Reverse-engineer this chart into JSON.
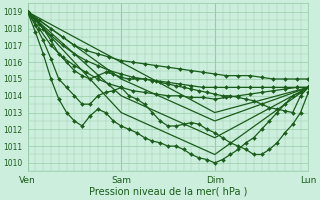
{
  "title": "",
  "xlabel": "Pression niveau de la mer( hPa )",
  "ylabel": "",
  "xlim": [
    0,
    72
  ],
  "ylim": [
    1009.5,
    1019.5
  ],
  "yticks": [
    1010,
    1011,
    1012,
    1013,
    1014,
    1015,
    1016,
    1017,
    1018,
    1019
  ],
  "xtick_positions": [
    0,
    24,
    48,
    72
  ],
  "xtick_labels": [
    "Ven",
    "Sam",
    "Dim",
    "Lun"
  ],
  "bg_color": "#cceedd",
  "grid_color": "#99ccaa",
  "line_color": "#1a5c1a",
  "marker": "D",
  "marker_size": 2.0,
  "line_width": 0.9,
  "series": [
    {
      "x": [
        0,
        3,
        6,
        9,
        12,
        15,
        18,
        21,
        24,
        27,
        30,
        33,
        36,
        39,
        42,
        45,
        48,
        51,
        54,
        57,
        60,
        63,
        66,
        69,
        72
      ],
      "y": [
        1019,
        1018.5,
        1018.0,
        1017.5,
        1017.0,
        1016.7,
        1016.5,
        1016.3,
        1016.1,
        1016.0,
        1015.9,
        1015.8,
        1015.7,
        1015.6,
        1015.5,
        1015.4,
        1015.3,
        1015.2,
        1015.2,
        1015.2,
        1015.1,
        1015.0,
        1015.0,
        1015.0,
        1015.0
      ]
    },
    {
      "x": [
        0,
        3,
        6,
        9,
        12,
        15,
        18,
        21,
        24,
        27,
        30,
        33,
        36,
        39,
        42,
        45,
        48,
        51,
        54,
        57,
        60,
        63,
        66,
        69,
        72
      ],
      "y": [
        1019,
        1018.3,
        1017.6,
        1017.0,
        1016.5,
        1016.1,
        1015.8,
        1015.5,
        1015.3,
        1015.1,
        1015.0,
        1014.9,
        1014.8,
        1014.7,
        1014.6,
        1014.5,
        1014.5,
        1014.5,
        1014.5,
        1014.5,
        1014.5,
        1014.5,
        1014.5,
        1014.5,
        1014.5
      ]
    },
    {
      "x": [
        0,
        3,
        6,
        9,
        12,
        15,
        18,
        21,
        24,
        27,
        30,
        33,
        36,
        39,
        42,
        45,
        48,
        51,
        54,
        57,
        60,
        63,
        66,
        69,
        72
      ],
      "y": [
        1019,
        1018.0,
        1017.0,
        1016.3,
        1015.8,
        1015.4,
        1015.0,
        1014.7,
        1014.5,
        1014.3,
        1014.2,
        1014.1,
        1014.0,
        1014.0,
        1013.9,
        1013.9,
        1013.8,
        1013.9,
        1014.0,
        1014.1,
        1014.2,
        1014.3,
        1014.4,
        1014.5,
        1014.5
      ]
    },
    {
      "x": [
        0,
        2,
        4,
        6,
        8,
        10,
        12,
        14,
        16,
        18,
        20,
        22,
        24,
        26,
        28,
        30,
        32,
        34,
        36,
        38,
        40,
        42,
        44,
        46,
        48,
        50,
        52,
        54,
        56,
        58,
        60,
        62,
        64,
        66,
        68,
        70,
        72
      ],
      "y": [
        1019,
        1018.5,
        1018.0,
        1017.3,
        1016.5,
        1016.0,
        1015.5,
        1015.2,
        1015.0,
        1015.2,
        1015.4,
        1015.3,
        1015.1,
        1015.0,
        1015.0,
        1015.0,
        1014.9,
        1014.8,
        1014.7,
        1014.6,
        1014.5,
        1014.4,
        1014.3,
        1014.2,
        1014.1,
        1014.0,
        1014.0,
        1013.9,
        1013.8,
        1013.7,
        1013.5,
        1013.3,
        1013.2,
        1013.1,
        1013.0,
        1014.0,
        1014.5
      ]
    },
    {
      "x": [
        0,
        24,
        48,
        72
      ],
      "y": [
        1019,
        1016.0,
        1013.0,
        1014.5
      ]
    },
    {
      "x": [
        0,
        24,
        48,
        72
      ],
      "y": [
        1019,
        1015.0,
        1012.5,
        1014.5
      ]
    },
    {
      "x": [
        0,
        24,
        48,
        72
      ],
      "y": [
        1019,
        1014.0,
        1011.5,
        1014.5
      ]
    },
    {
      "x": [
        0,
        24,
        48,
        72
      ],
      "y": [
        1019,
        1013.0,
        1010.5,
        1014.5
      ]
    },
    {
      "x": [
        0,
        2,
        4,
        6,
        8,
        10,
        12,
        14,
        16,
        18,
        20,
        22,
        24,
        26,
        28,
        30,
        32,
        34,
        36,
        38,
        40,
        42,
        44,
        46,
        48,
        50,
        52,
        54,
        56,
        58,
        60,
        62,
        64,
        66,
        68,
        70,
        72
      ],
      "y": [
        1019,
        1018.2,
        1017.3,
        1016.2,
        1015.0,
        1014.5,
        1014.0,
        1013.5,
        1013.5,
        1014.0,
        1014.2,
        1014.3,
        1014.5,
        1014.0,
        1013.8,
        1013.5,
        1013.0,
        1012.5,
        1012.2,
        1012.2,
        1012.3,
        1012.4,
        1012.3,
        1012.0,
        1011.8,
        1011.5,
        1011.2,
        1011.0,
        1010.8,
        1010.5,
        1010.5,
        1010.8,
        1011.2,
        1011.8,
        1012.3,
        1013.0,
        1014.2
      ]
    },
    {
      "x": [
        0,
        2,
        4,
        6,
        8,
        10,
        12,
        14,
        16,
        18,
        20,
        22,
        24,
        26,
        28,
        30,
        32,
        34,
        36,
        38,
        40,
        42,
        44,
        46,
        48,
        50,
        52,
        54,
        56,
        58,
        60,
        62,
        64,
        66,
        68,
        70,
        72
      ],
      "y": [
        1019,
        1017.8,
        1016.5,
        1015.0,
        1013.8,
        1013.0,
        1012.5,
        1012.2,
        1012.8,
        1013.2,
        1013.0,
        1012.5,
        1012.2,
        1012.0,
        1011.8,
        1011.5,
        1011.3,
        1011.2,
        1011.0,
        1011.0,
        1010.8,
        1010.5,
        1010.3,
        1010.2,
        1010.0,
        1010.2,
        1010.5,
        1010.8,
        1011.2,
        1011.5,
        1012.0,
        1012.5,
        1013.0,
        1013.5,
        1014.0,
        1014.2,
        1014.5
      ]
    }
  ]
}
